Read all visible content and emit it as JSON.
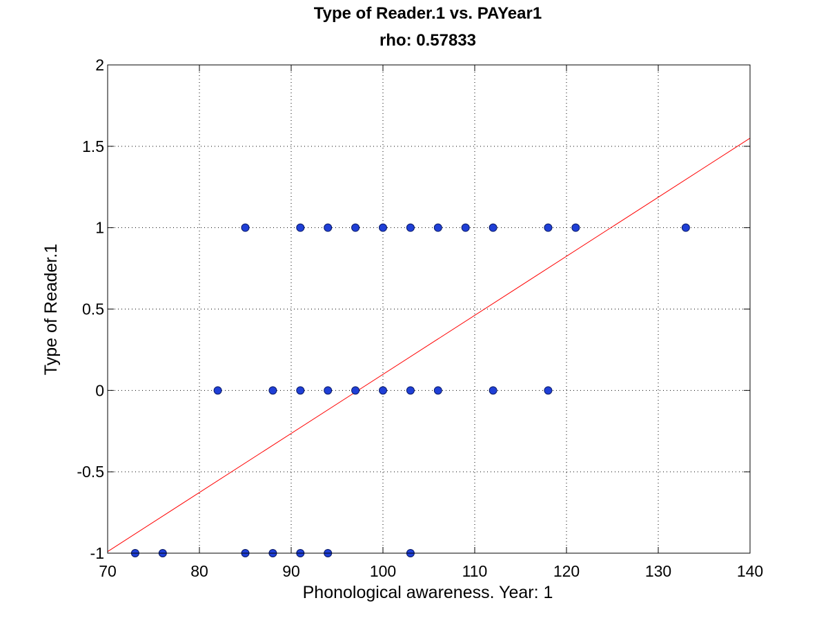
{
  "chart_data": {
    "type": "scatter",
    "title": "Type of Reader.1 vs. PAYear1",
    "subtitle": "rho: 0.57833",
    "xlabel": "Phonological awareness. Year: 1",
    "ylabel": "Type of Reader.1",
    "xlim": [
      70,
      140
    ],
    "ylim": [
      -1,
      2
    ],
    "xticks": [
      70,
      80,
      90,
      100,
      110,
      120,
      130,
      140
    ],
    "yticks": [
      -1,
      -0.5,
      0,
      0.5,
      1,
      1.5,
      2
    ],
    "grid": true,
    "series": [
      {
        "points": [
          [
            73,
            -1
          ],
          [
            76,
            -1
          ],
          [
            85,
            -1
          ],
          [
            88,
            -1
          ],
          [
            91,
            -1
          ],
          [
            94,
            -1
          ],
          [
            103,
            -1
          ],
          [
            82,
            0
          ],
          [
            88,
            0
          ],
          [
            91,
            0
          ],
          [
            94,
            0
          ],
          [
            97,
            0
          ],
          [
            100,
            0
          ],
          [
            103,
            0
          ],
          [
            106,
            0
          ],
          [
            112,
            0
          ],
          [
            118,
            0
          ],
          [
            85,
            1
          ],
          [
            91,
            1
          ],
          [
            94,
            1
          ],
          [
            97,
            1
          ],
          [
            100,
            1
          ],
          [
            103,
            1
          ],
          [
            106,
            1
          ],
          [
            109,
            1
          ],
          [
            112,
            1
          ],
          [
            118,
            1
          ],
          [
            121,
            1
          ],
          [
            133,
            1
          ]
        ],
        "marker_color": "#1f3fd6",
        "marker_edge": "#0a1a66"
      }
    ],
    "fit_line": {
      "x": [
        70,
        140
      ],
      "y": [
        -0.99,
        1.55
      ],
      "color": "#ff0000"
    }
  }
}
